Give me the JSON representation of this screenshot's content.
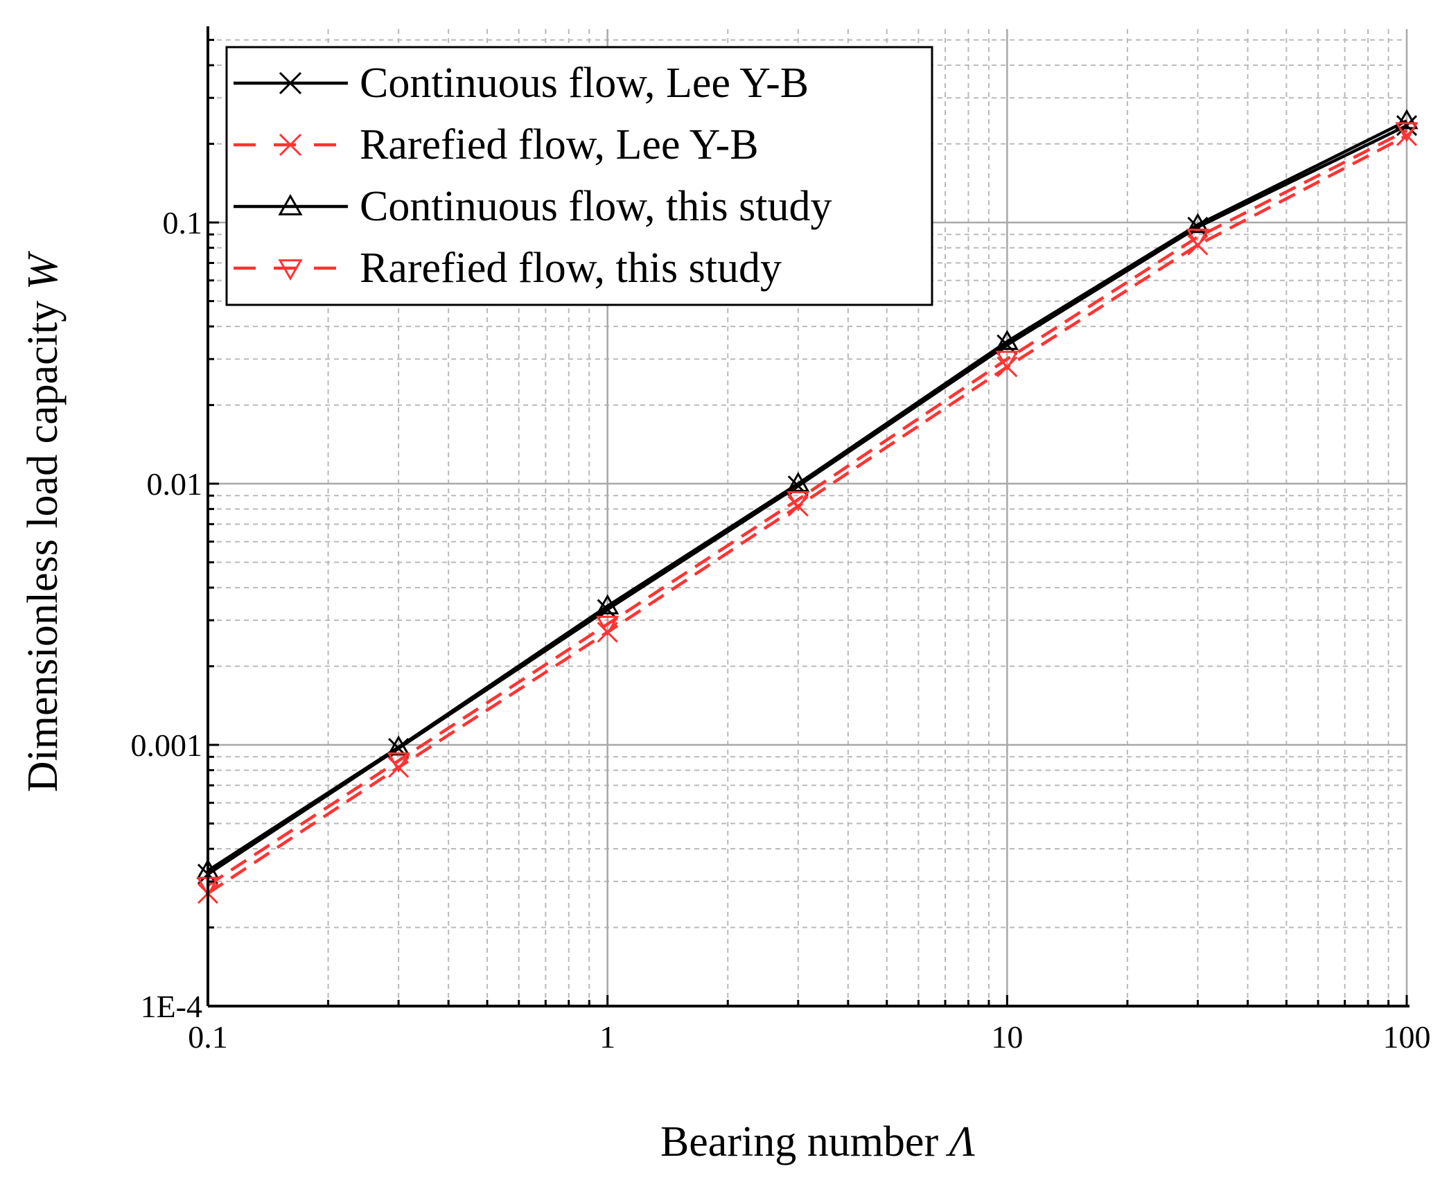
{
  "chart_data": {
    "type": "line",
    "xscale": "log",
    "yscale": "log",
    "xlim": [
      0.1,
      100
    ],
    "ylim": [
      0.0001,
      0.55
    ],
    "grid": true,
    "legend_position": "top-left",
    "xlabel": "Bearing number ",
    "xlabel_symbol": "Λ",
    "ylabel": "Dimensionless load capacity ",
    "ylabel_symbol": "W",
    "xticks": [
      {
        "value": 0.1,
        "label": "0.1"
      },
      {
        "value": 1,
        "label": "1"
      },
      {
        "value": 10,
        "label": "10"
      },
      {
        "value": 100,
        "label": "100"
      }
    ],
    "yticks": [
      {
        "value": 0.0001,
        "label": "1E-4"
      },
      {
        "value": 0.001,
        "label": "0.001"
      },
      {
        "value": 0.01,
        "label": "0.01"
      },
      {
        "value": 0.1,
        "label": "0.1"
      }
    ],
    "x": [
      0.1,
      0.3,
      1,
      3,
      10,
      30,
      100
    ],
    "series": [
      {
        "name": "Continuous flow, Lee Y-B",
        "color": "#000000",
        "dash": "solid",
        "marker": "x",
        "values": [
          0.00032,
          0.00097,
          0.0033,
          0.0098,
          0.034,
          0.096,
          0.235
        ]
      },
      {
        "name": "Rarefied flow, Lee Y-B",
        "color": "#ff3333",
        "dash": "dashed",
        "marker": "x",
        "values": [
          0.00027,
          0.00082,
          0.0027,
          0.0082,
          0.028,
          0.082,
          0.215
        ]
      },
      {
        "name": "Continuous flow, this study",
        "color": "#000000",
        "dash": "solid",
        "marker": "triangle-up",
        "values": [
          0.00033,
          0.00098,
          0.0034,
          0.01,
          0.035,
          0.098,
          0.245
        ]
      },
      {
        "name": "Rarefied flow, this study",
        "color": "#ff3333",
        "dash": "dashed",
        "marker": "triangle-down",
        "values": [
          0.00029,
          0.00087,
          0.0029,
          0.0087,
          0.03,
          0.088,
          0.225
        ]
      }
    ]
  }
}
